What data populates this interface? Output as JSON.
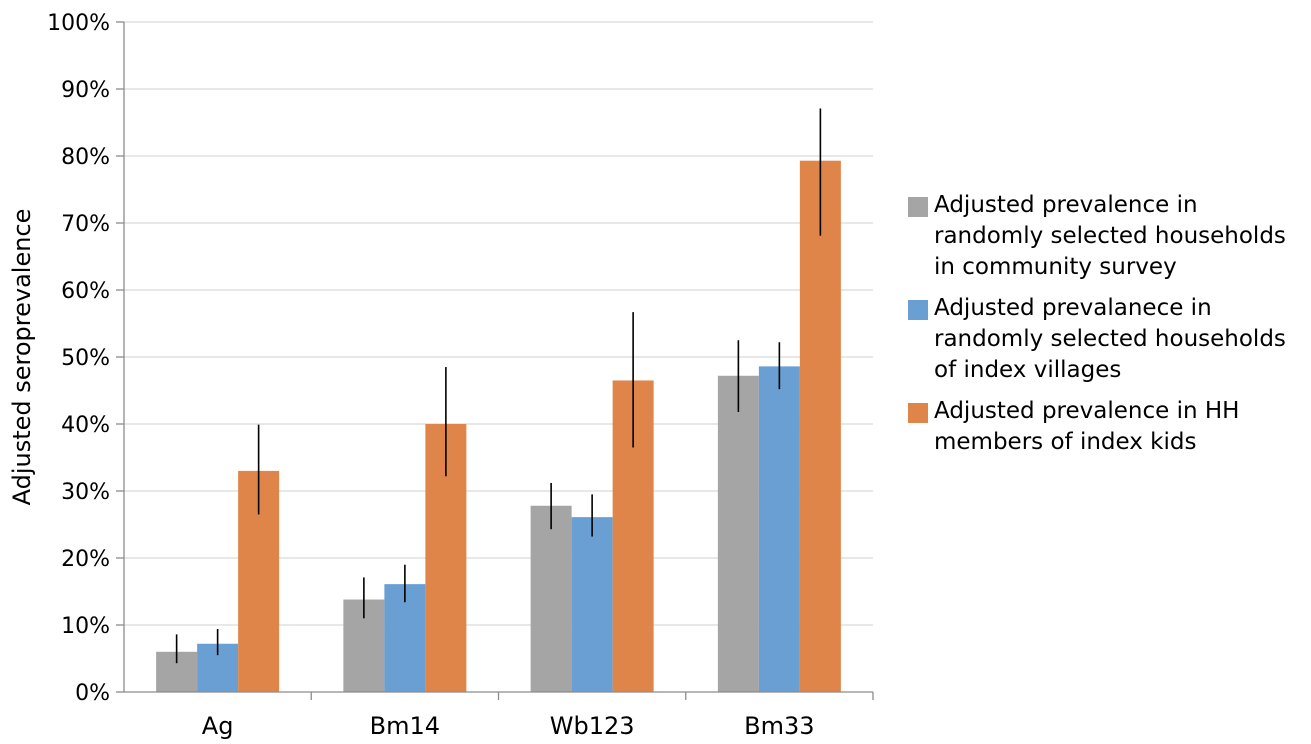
{
  "chart_data": {
    "type": "bar",
    "title": "",
    "xlabel": "",
    "ylabel": "Adjusted seroprevalence",
    "categories": [
      "Ag",
      "Bm14",
      "Wb123",
      "Bm33"
    ],
    "yticks": [
      "0%",
      "10%",
      "20%",
      "30%",
      "40%",
      "50%",
      "60%",
      "70%",
      "80%",
      "90%",
      "100%"
    ],
    "ylim": [
      0,
      100
    ],
    "grid": true,
    "legend_position": "right",
    "series": [
      {
        "name": "Adjusted prevalence in\nrandomly selected households\nin community survey",
        "color": "#a5a5a5",
        "values": [
          6.0,
          13.8,
          27.8,
          47.2
        ],
        "error_low": [
          4.3,
          11.0,
          24.3,
          41.8
        ],
        "error_high": [
          8.6,
          17.1,
          31.2,
          52.5
        ]
      },
      {
        "name": "Adjusted prevalanece in\nrandomly selected households\nof index villages",
        "color": "#6a9fd4",
        "values": [
          7.2,
          16.1,
          26.1,
          48.6
        ],
        "error_low": [
          5.5,
          13.4,
          23.2,
          45.2
        ],
        "error_high": [
          9.4,
          19.0,
          29.5,
          52.2
        ]
      },
      {
        "name": "Adjusted prevalence in HH\nmembers of index kids",
        "color": "#e0854a",
        "values": [
          33.0,
          40.0,
          46.5,
          79.3
        ],
        "error_low": [
          26.5,
          32.2,
          36.5,
          68.1
        ],
        "error_high": [
          39.9,
          48.5,
          56.7,
          87.1
        ]
      }
    ]
  }
}
